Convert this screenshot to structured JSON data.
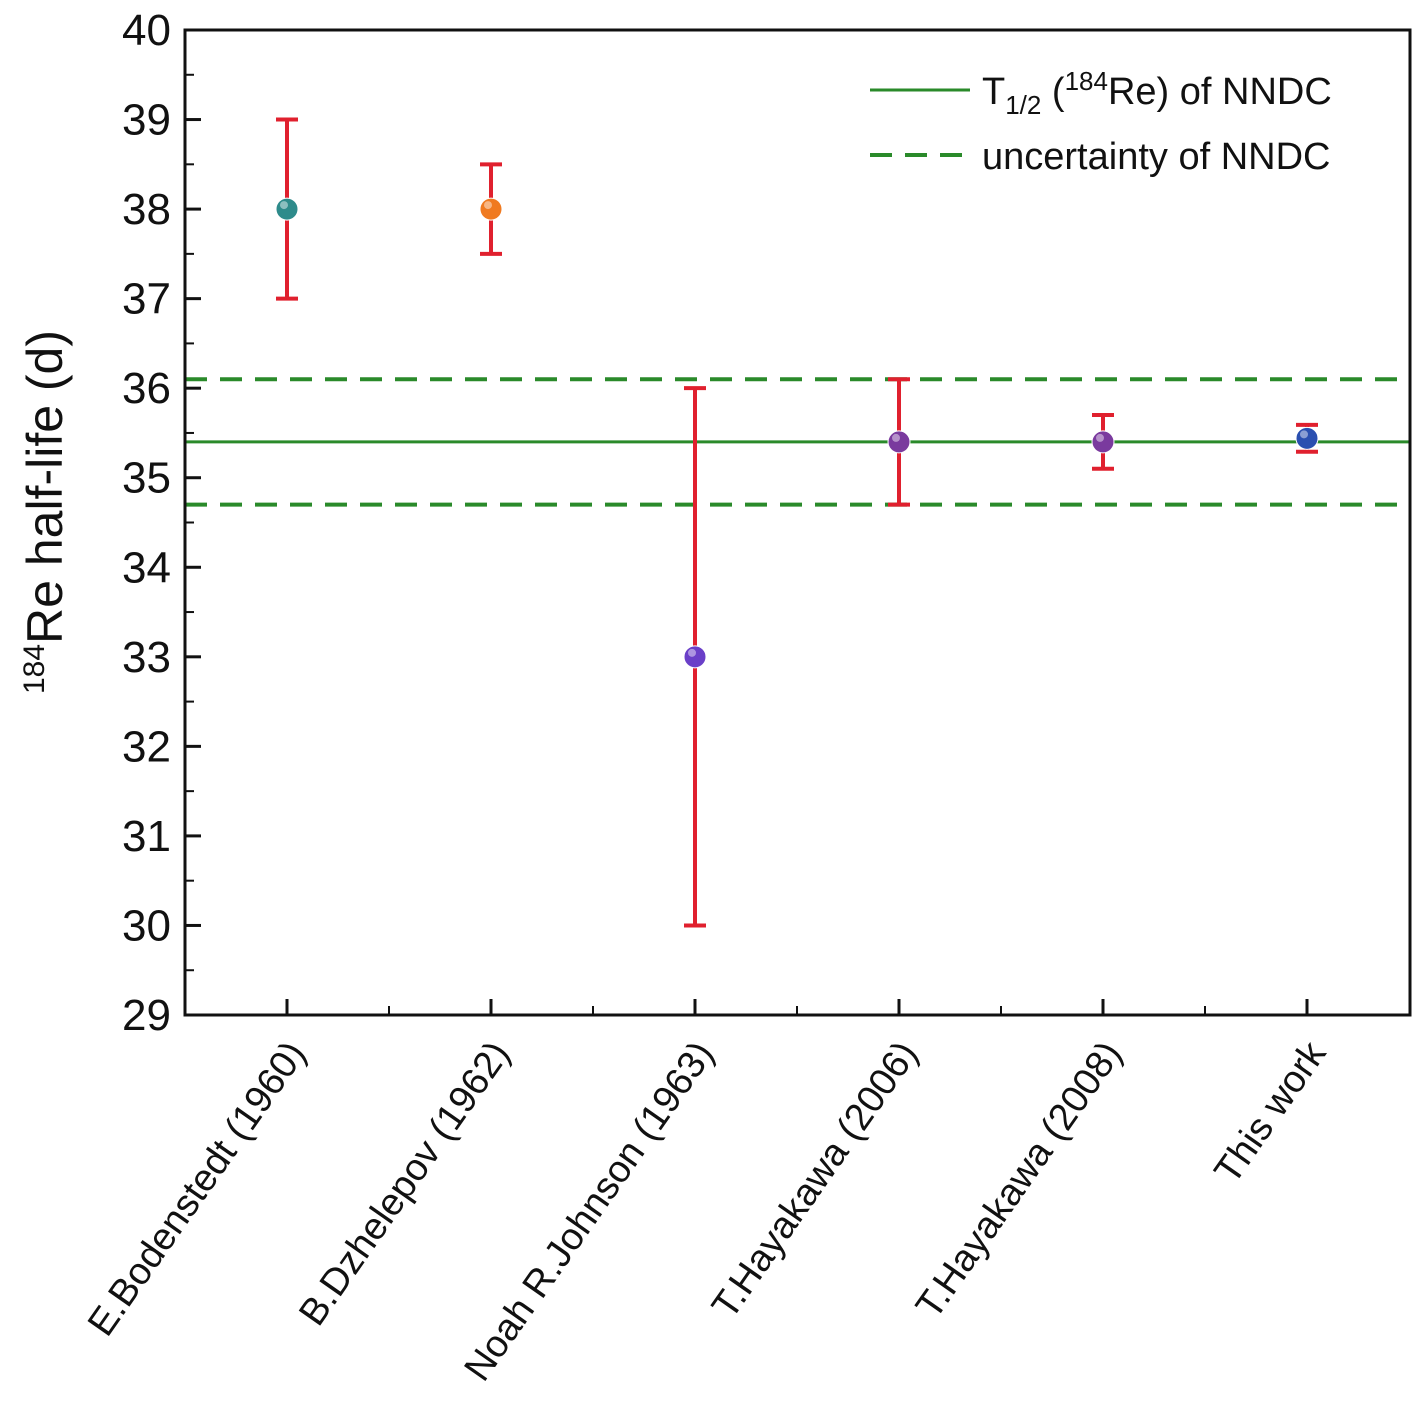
{
  "chart_data": {
    "type": "scatter",
    "title": "",
    "xlabel": "",
    "ylabel": {
      "superscript": "184",
      "text": "Re half-life (d)"
    },
    "ylim": [
      29,
      40
    ],
    "yticks": [
      "29",
      "30",
      "31",
      "32",
      "33",
      "34",
      "35",
      "36",
      "37",
      "38",
      "39",
      "40"
    ],
    "categories": [
      "E.Bodenstedt (1960)",
      "B.Dzhelepov (1962)",
      "Noah R.Johnson (1963)",
      "T.Hayakawa (2006)",
      "T.Hayakawa (2008)",
      "This work"
    ],
    "points": [
      {
        "value": 38.0,
        "error": 1.0,
        "color": "#2e8b8b"
      },
      {
        "value": 38.0,
        "error": 0.5,
        "color": "#f07a20"
      },
      {
        "value": 33.0,
        "error": 3.0,
        "color": "#6a3fc8"
      },
      {
        "value": 35.4,
        "error": 0.7,
        "color": "#7a3a9e"
      },
      {
        "value": 35.4,
        "error": 0.3,
        "color": "#7a3a9e"
      },
      {
        "value": 35.44,
        "error": 0.15,
        "color": "#2a4fb0"
      }
    ],
    "error_bar_color": "#e0202e",
    "reference": {
      "value": 35.4,
      "upper": 36.1,
      "lower": 34.7,
      "color": "#2a8a2a"
    },
    "legend": {
      "position": "top-right",
      "entries": [
        {
          "style": "solid",
          "prefix": "T",
          "sub": "1/2",
          "mid": " (",
          "sup": "184",
          "suffix": "Re) of NNDC"
        },
        {
          "style": "dashed",
          "label": "uncertainty of NNDC"
        }
      ]
    },
    "grid": false
  }
}
